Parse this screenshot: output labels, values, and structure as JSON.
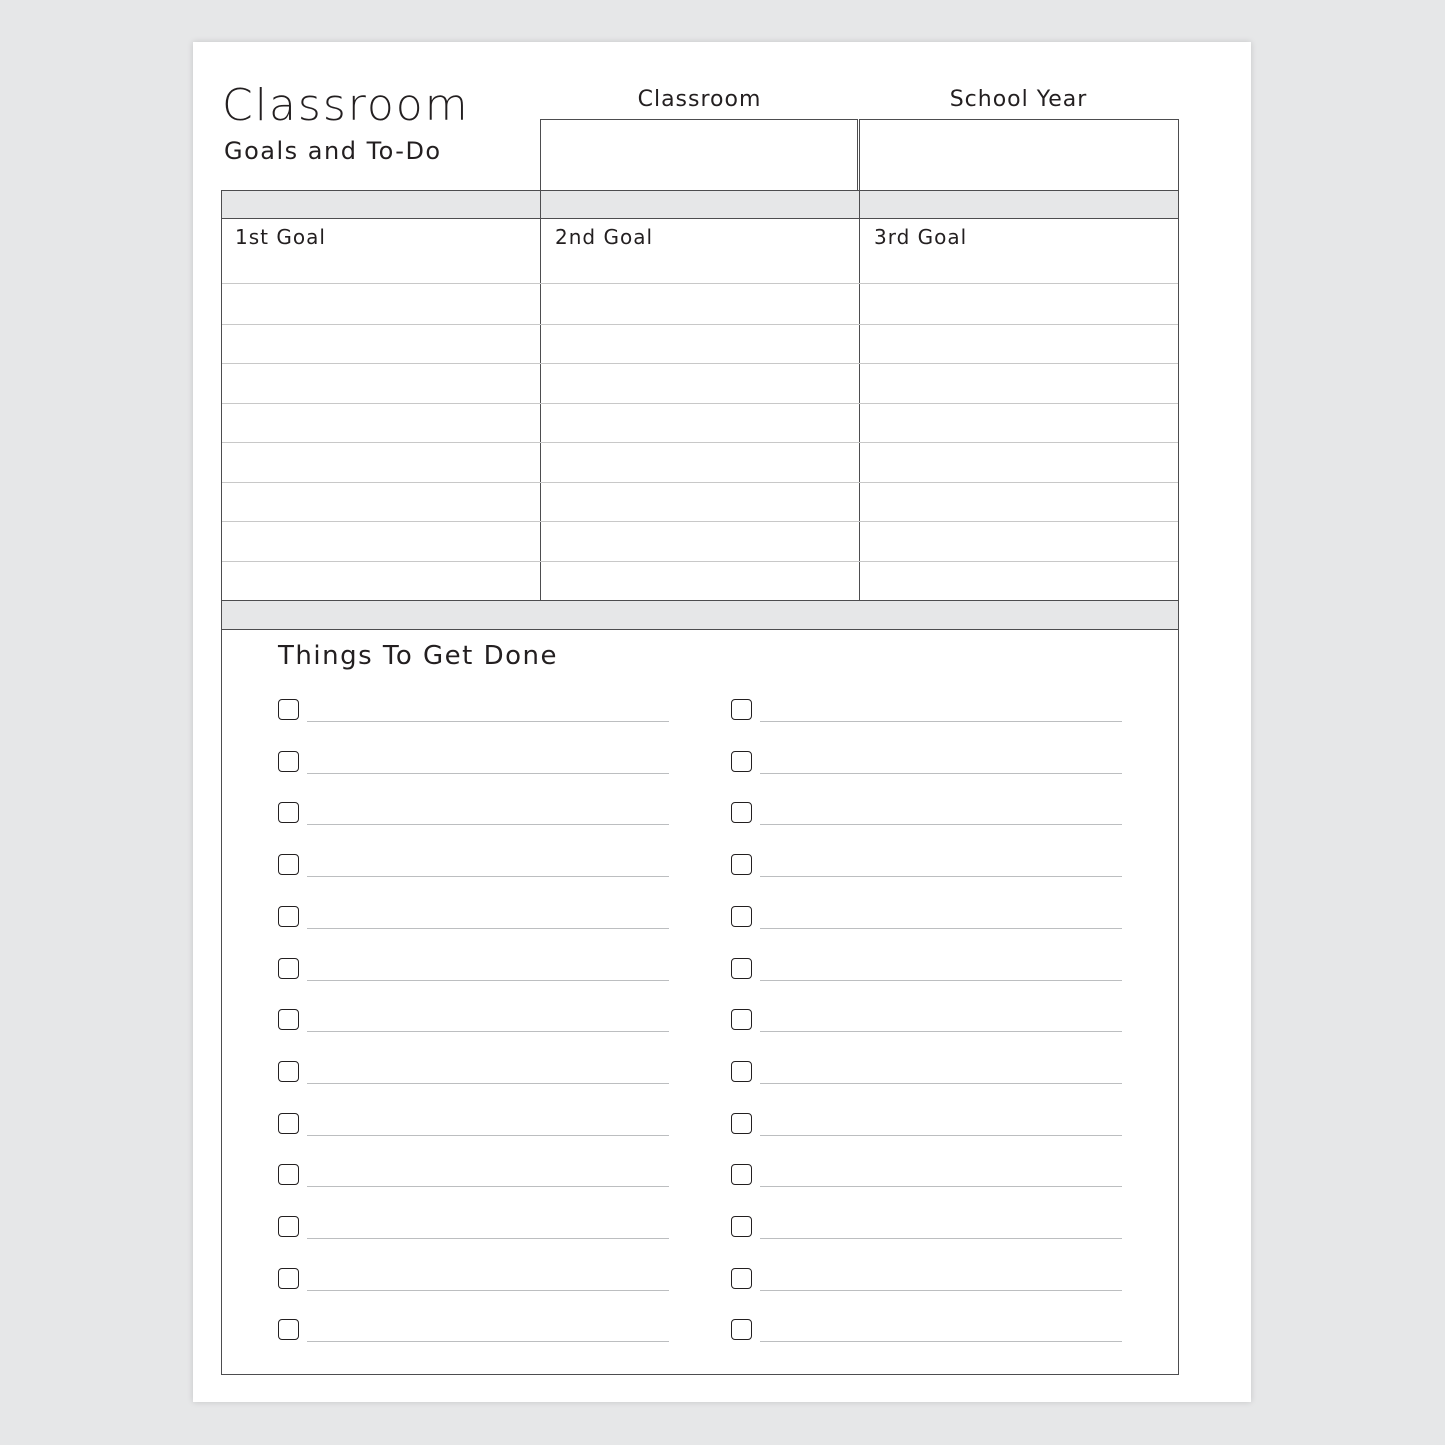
{
  "header": {
    "title": "Classroom",
    "subtitle": "Goals and To-Do"
  },
  "fields": [
    {
      "label": "Classroom",
      "value": ""
    },
    {
      "label": "School Year",
      "value": ""
    }
  ],
  "goals": [
    {
      "label": "1st Goal"
    },
    {
      "label": "2nd Goal"
    },
    {
      "label": "3rd Goal"
    }
  ],
  "todo": {
    "heading": "Things To Get Done",
    "columns": [
      [
        "",
        "",
        "",
        "",
        "",
        "",
        "",
        "",
        "",
        "",
        "",
        "",
        ""
      ],
      [
        "",
        "",
        "",
        "",
        "",
        "",
        "",
        "",
        "",
        "",
        "",
        "",
        ""
      ]
    ]
  },
  "colors": {
    "background": "#e6e7e8",
    "band": "#e6e7e8",
    "border": "#4d4d4f",
    "text": "#231f20"
  }
}
